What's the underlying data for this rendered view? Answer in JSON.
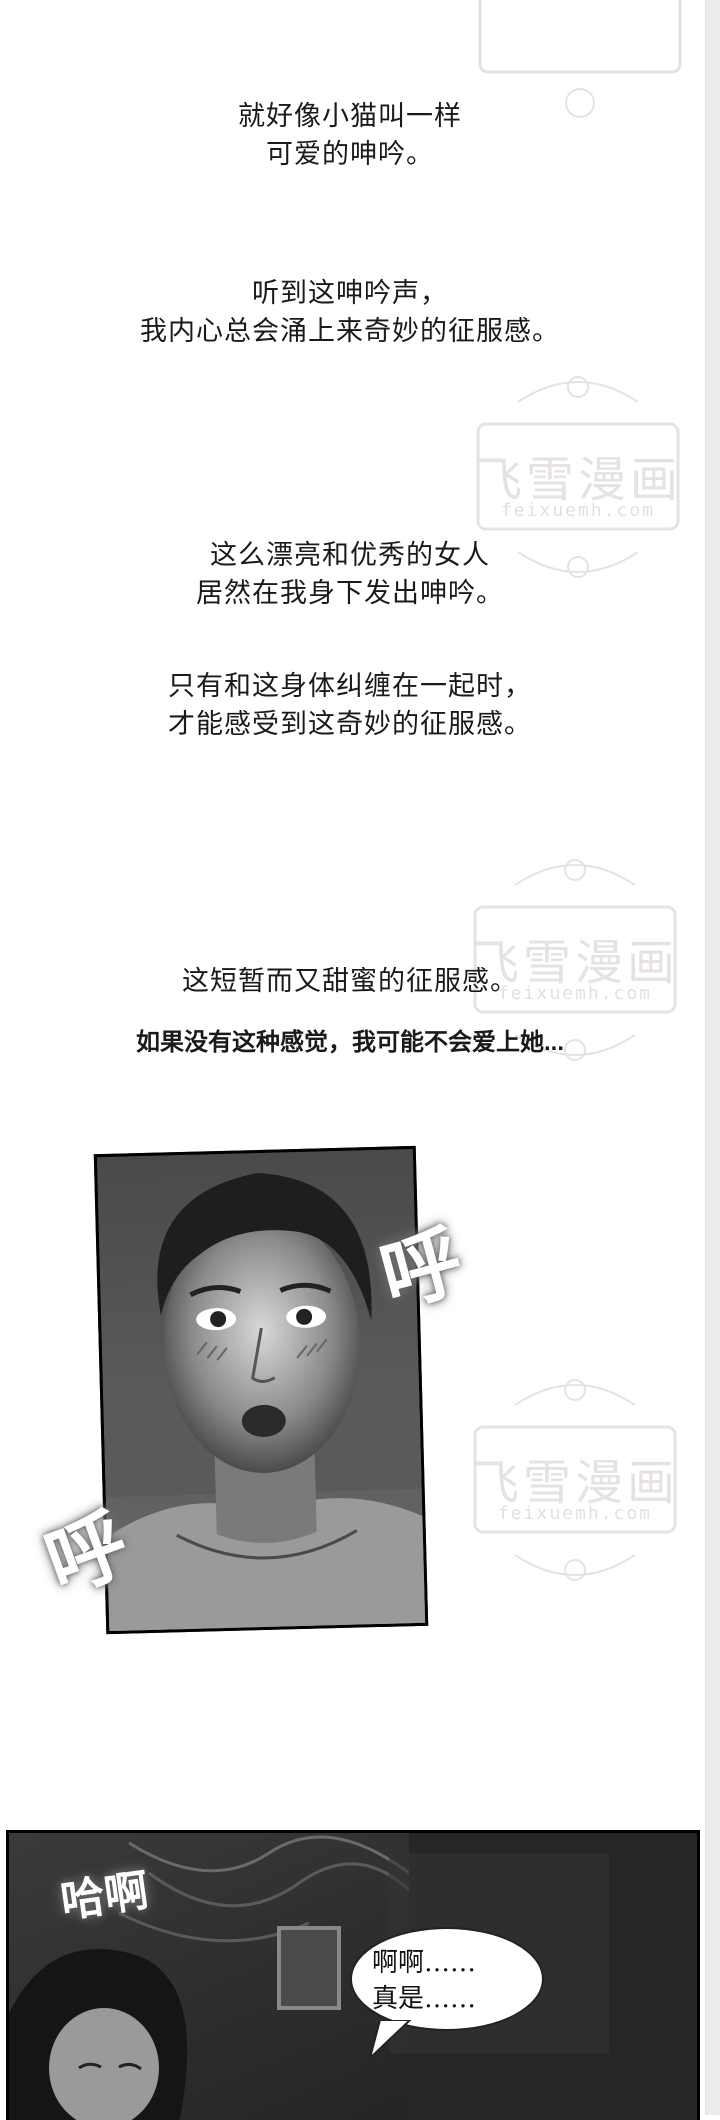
{
  "watermark": {
    "title": "飞雪漫画",
    "url": "feixuemh.com"
  },
  "captions": [
    {
      "lines": [
        "就好像小猫叫一样",
        "可爱的呻吟。"
      ]
    },
    {
      "lines": [
        "听到这呻吟声，",
        "我内心总会涌上来奇妙的征服感。"
      ]
    },
    {
      "lines": [
        "这么漂亮和优秀的女人",
        "居然在我身下发出呻吟。"
      ]
    },
    {
      "lines": [
        "只有和这身体纠缠在一起时，",
        "才能感受到这奇妙的征服感。"
      ]
    },
    {
      "lines": [
        "这短暂而又甜蜜的征服感。"
      ]
    }
  ],
  "caption_sans": "如果没有这种感觉，我可能不会爱上她...",
  "sfx": {
    "huff": "呼",
    "haa": "哈啊"
  },
  "speech_bubble": {
    "lines": [
      "啊啊……",
      "真是……"
    ]
  },
  "colors": {
    "panel_dark": "#2b2b2b",
    "watermark": "#cfc6c7"
  }
}
